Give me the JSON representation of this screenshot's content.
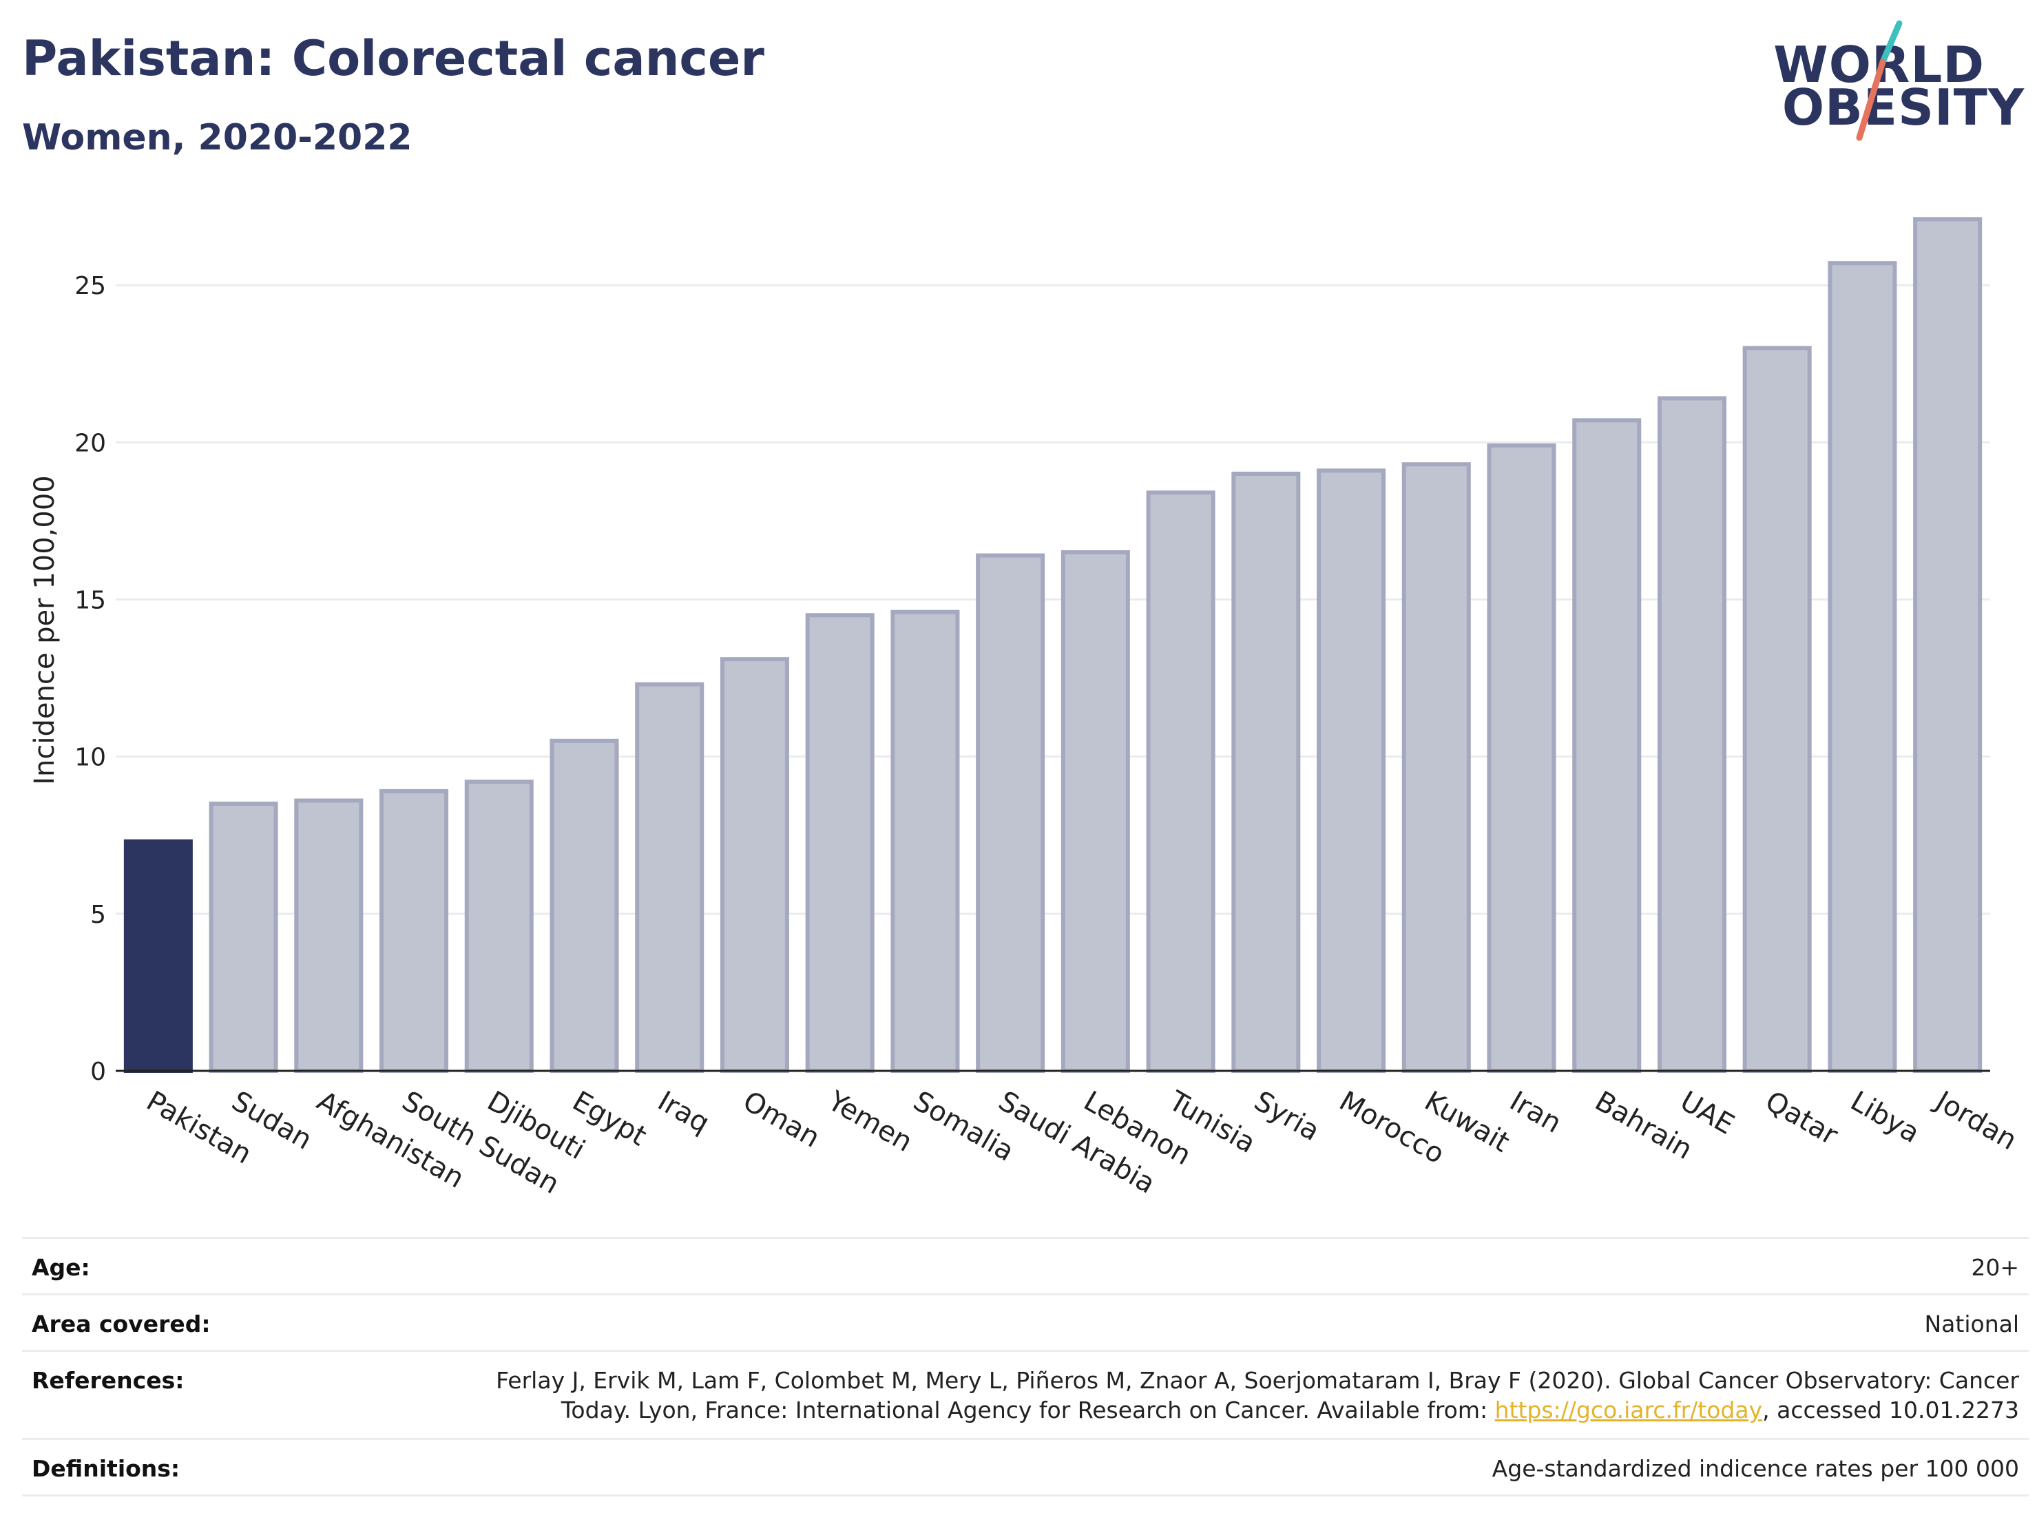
{
  "header": {
    "title": "Pakistan: Colorectal cancer",
    "subtitle": "Women, 2020-2022"
  },
  "logo": {
    "line1": "WORLD",
    "line2": "OBESITY"
  },
  "colors": {
    "highlight": "#2b355f",
    "bar_fill": "#c0c3d0",
    "bar_stroke": "#a5a9bf",
    "grid": "#e9ecef"
  },
  "chart_data": {
    "type": "bar",
    "title": "",
    "xlabel": "",
    "ylabel": "Incidence per 100,000",
    "ylim": [
      0,
      27.5
    ],
    "yticks": [
      0,
      5,
      10,
      15,
      20,
      25
    ],
    "grid": true,
    "highlight_category": "Pakistan",
    "categories": [
      "Pakistan",
      "Sudan",
      "Afghanistan",
      "South Sudan",
      "Djibouti",
      "Egypt",
      "Iraq",
      "Oman",
      "Yemen",
      "Somalia",
      "Saudi Arabia",
      "Lebanon",
      "Tunisia",
      "Syria",
      "Morocco",
      "Kuwait",
      "Iran",
      "Bahrain",
      "UAE",
      "Qatar",
      "Libya",
      "Jordan"
    ],
    "values": [
      7.3,
      8.5,
      8.6,
      8.9,
      9.2,
      10.5,
      12.3,
      13.1,
      14.5,
      14.6,
      16.4,
      16.5,
      18.4,
      19.0,
      19.1,
      19.3,
      19.9,
      20.7,
      21.4,
      23.0,
      25.7,
      27.1
    ]
  },
  "meta": {
    "age_label": "Age:",
    "age_value": "20+",
    "area_label": "Area covered:",
    "area_value": "National",
    "references_label": "References:",
    "references_line1": "Ferlay J, Ervik M, Lam F, Colombet M, Mery L, Piñeros M, Znaor A, Soerjomataram I, Bray F (2020). Global Cancer Observatory: Cancer",
    "references_line2_pre": "Today. Lyon, France: International Agency for Research on Cancer. Available from: ",
    "references_link": "https://gco.iarc.fr/today",
    "references_line2_post": ", accessed 10.01.2273",
    "definitions_label": "Definitions:",
    "definitions_value": "Age-standardized indicence rates per 100 000"
  }
}
